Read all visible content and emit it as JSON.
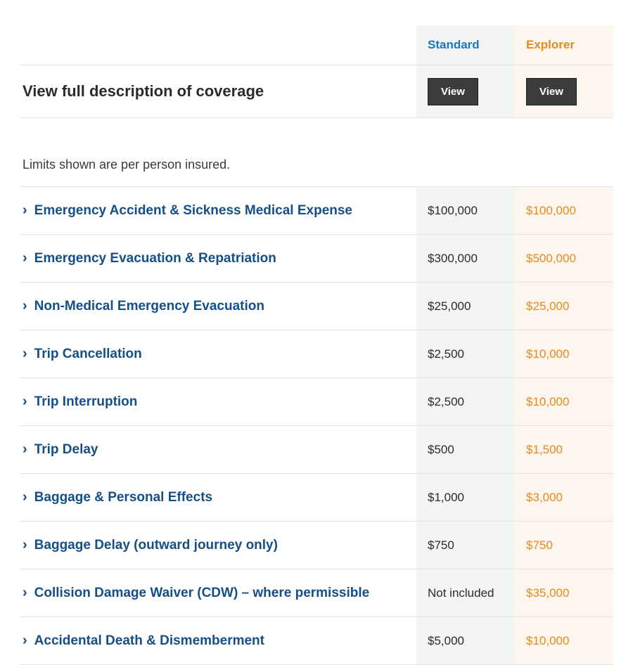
{
  "colors": {
    "standard_accent": "#1976c0",
    "explorer_accent": "#e78a1e",
    "standard_bg": "#f4f4f2",
    "explorer_bg": "#fcf6ee",
    "coverage_label": "#144f87",
    "view_btn_bg": "#3c3c3a",
    "border": "#e3e3e3",
    "body_text": "#2b2b2b",
    "page_bg": "#ffffff"
  },
  "layout": {
    "grid_columns": "1fr 140px 140px",
    "title_fontsize": 22,
    "row_label_fontsize": 19,
    "value_fontsize": 17,
    "plan_header_fontsize": 17
  },
  "plans": {
    "standard": {
      "label": "Standard",
      "view_button": "View"
    },
    "explorer": {
      "label": "Explorer",
      "view_button": "View"
    }
  },
  "description_row": {
    "label": "View full description of coverage"
  },
  "limits_note": "Limits shown are per person insured.",
  "rows": [
    {
      "label": "Emergency Accident & Sickness Medical Expense",
      "standard": "$100,000",
      "explorer": "$100,000"
    },
    {
      "label": "Emergency Evacuation & Repatriation",
      "standard": "$300,000",
      "explorer": "$500,000"
    },
    {
      "label": "Non-Medical Emergency Evacuation",
      "standard": "$25,000",
      "explorer": "$25,000"
    },
    {
      "label": "Trip Cancellation",
      "standard": "$2,500",
      "explorer": "$10,000"
    },
    {
      "label": "Trip Interruption",
      "standard": "$2,500",
      "explorer": "$10,000"
    },
    {
      "label": "Trip Delay",
      "standard": "$500",
      "explorer": "$1,500"
    },
    {
      "label": "Baggage & Personal Effects",
      "standard": "$1,000",
      "explorer": "$3,000"
    },
    {
      "label": "Baggage Delay (outward journey only)",
      "standard": "$750",
      "explorer": "$750"
    },
    {
      "label": "Collision Damage Waiver (CDW) – where permissible",
      "standard": "Not included",
      "explorer": "$35,000"
    },
    {
      "label": "Accidental Death & Dismemberment",
      "standard": "$5,000",
      "explorer": "$10,000"
    }
  ]
}
